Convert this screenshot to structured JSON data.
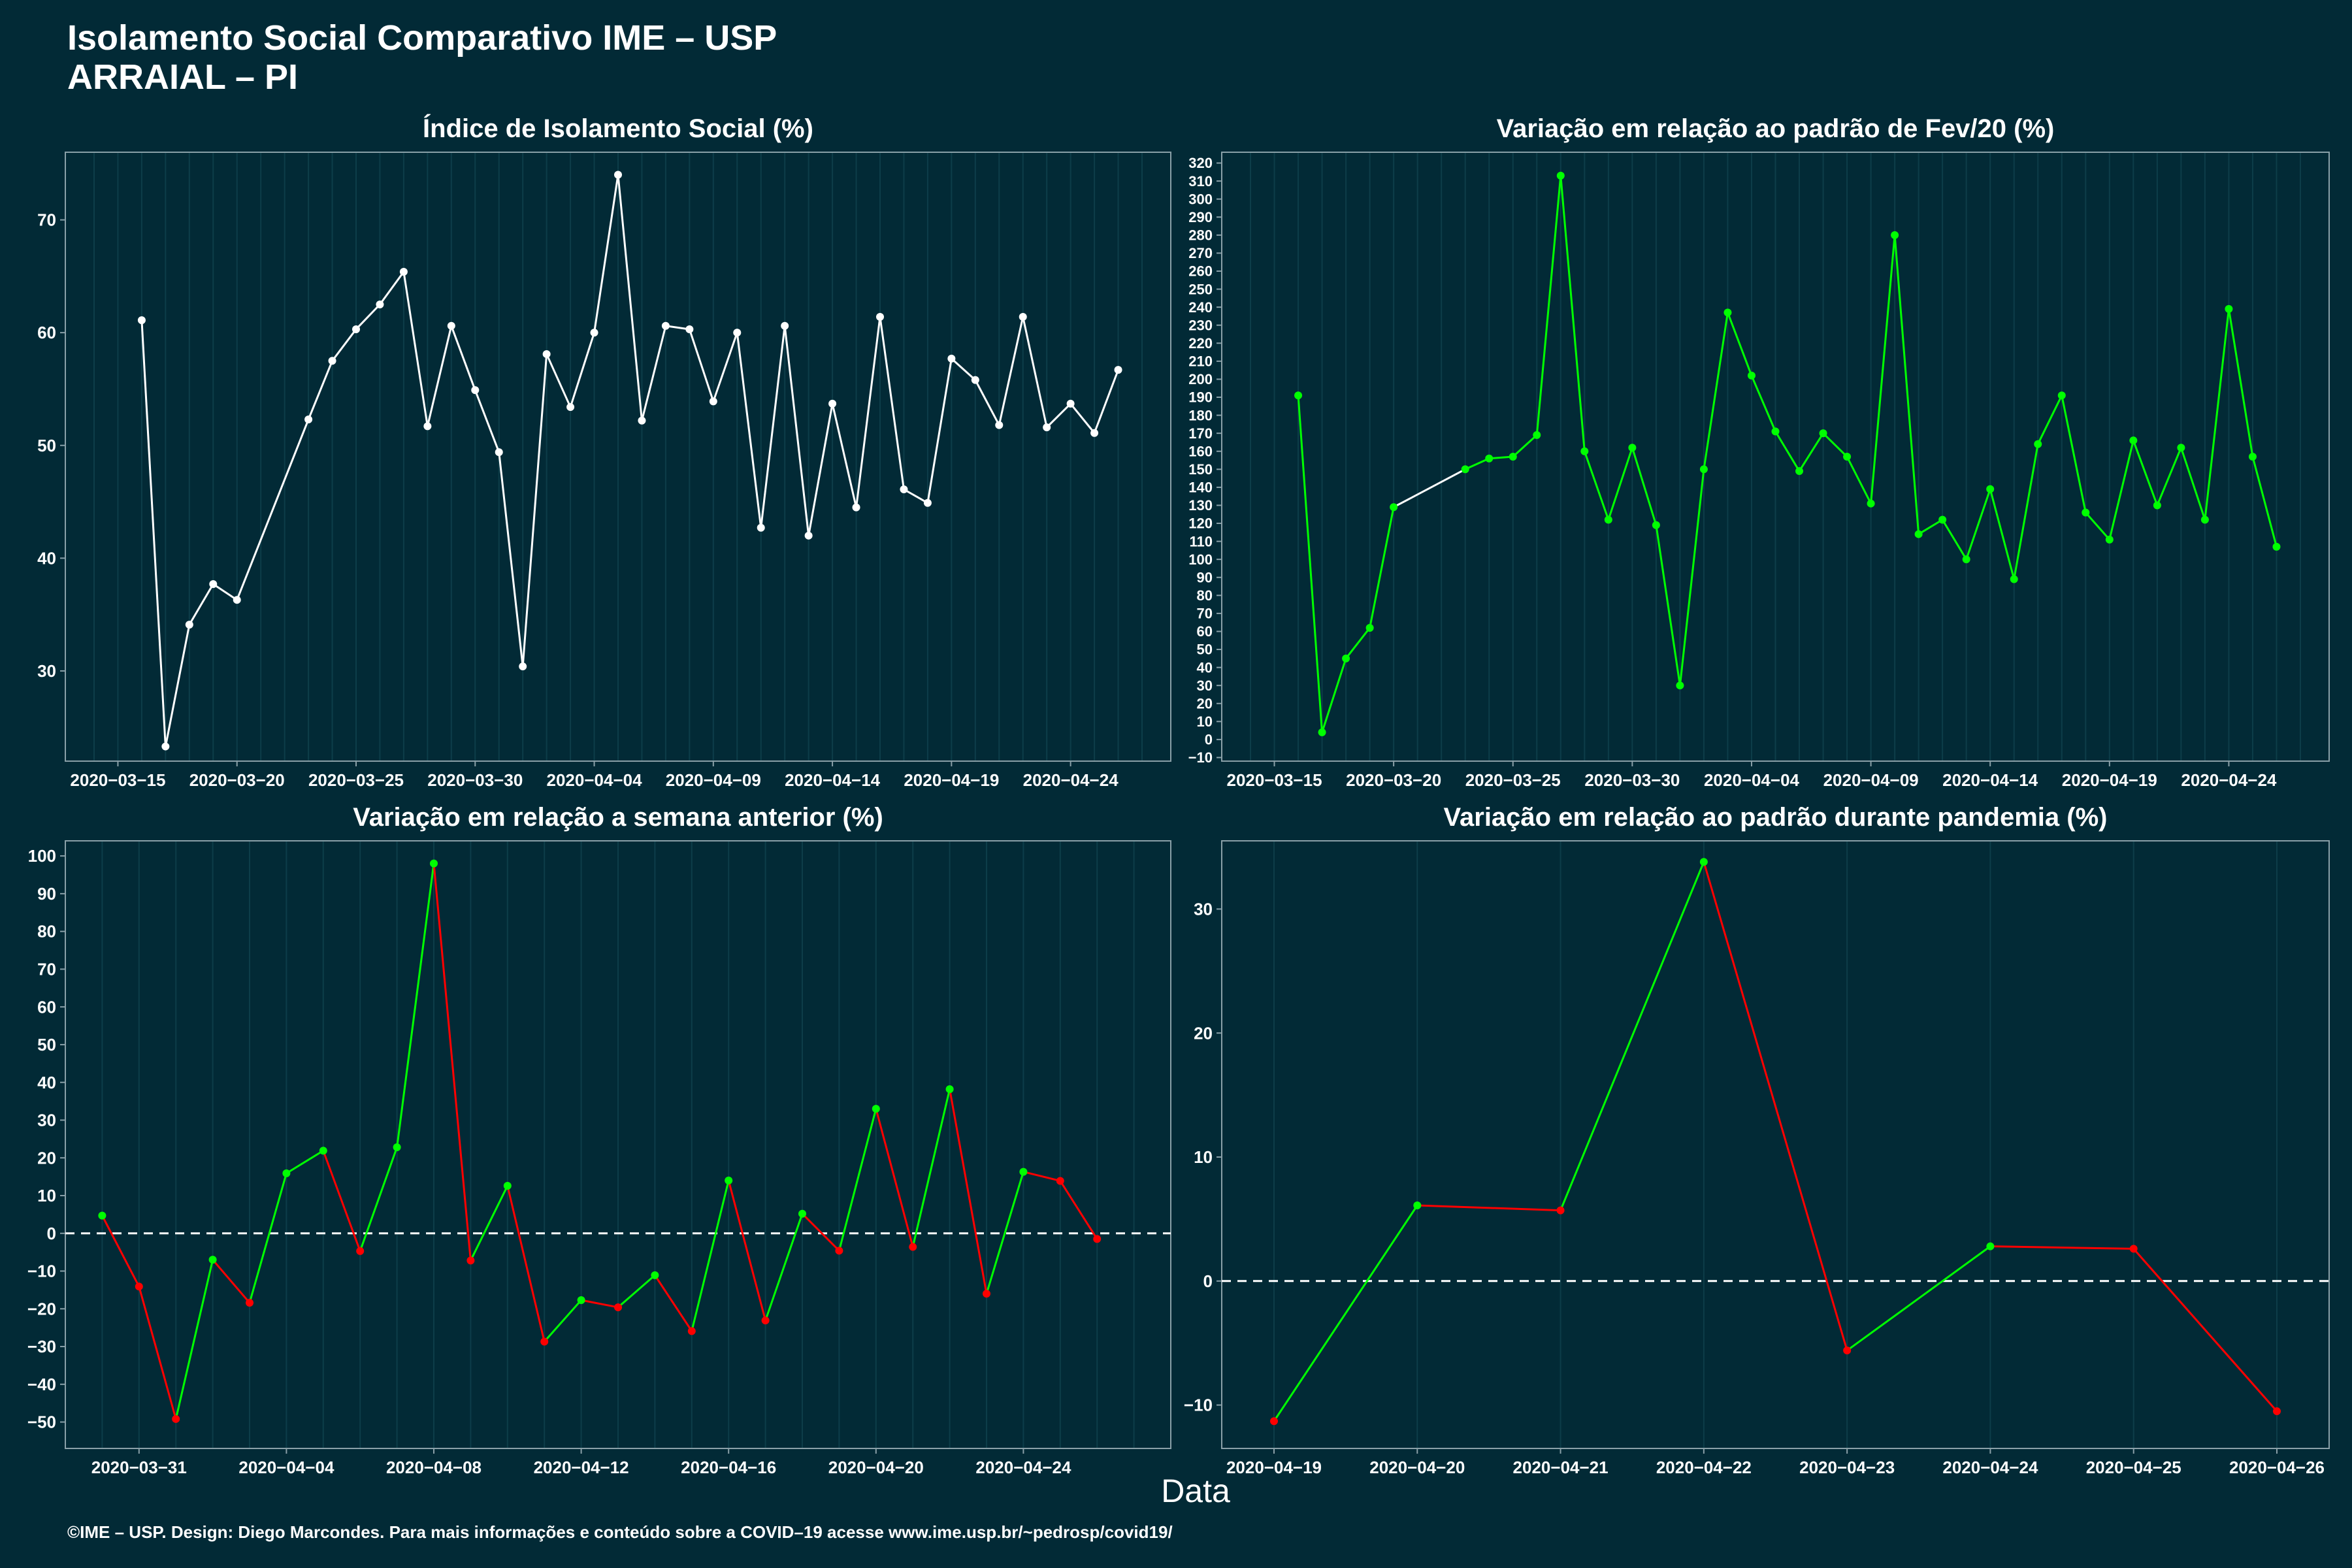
{
  "title_line1": "Isolamento Social Comparativo IME – USP",
  "title_line2": "ARRAIAL – PI",
  "xlabel": "Data",
  "footer": "©IME – USP. Design: Diego Marcondes. Para mais informações e conteúdo sobre a COVID–19 acesse www.ime.usp.br/~pedrosp/covid19/",
  "colors": {
    "background": "#022a36",
    "white": "#ffffff",
    "positive": "#00ff00",
    "negative": "#ff0000",
    "grid": "#0d3d49",
    "axis": "#8aa0a8"
  },
  "chart_data": [
    {
      "type": "line",
      "title": "Índice de Isolamento Social (%)",
      "color": "#ffffff",
      "ylim": [
        22,
        76
      ],
      "yticks": [
        30,
        40,
        50,
        60,
        70
      ],
      "xticks": [
        "2020-03-15",
        "2020-03-20",
        "2020-03-25",
        "2020-03-30",
        "2020-04-04",
        "2020-04-09",
        "2020-04-14",
        "2020-04-19",
        "2020-04-24"
      ],
      "xlim": [
        "2020-03-14",
        "2020-04-27"
      ],
      "points": [
        [
          "2020-03-16",
          61.1
        ],
        [
          "2020-03-17",
          23.3
        ],
        [
          "2020-03-18",
          34.1
        ],
        [
          "2020-03-19",
          37.7
        ],
        [
          "2020-03-20",
          36.3
        ],
        [
          "2020-03-23",
          52.3
        ],
        [
          "2020-03-24",
          57.5
        ],
        [
          "2020-03-25",
          60.3
        ],
        [
          "2020-03-26",
          62.5
        ],
        [
          "2020-03-27",
          65.4
        ],
        [
          "2020-03-28",
          51.7
        ],
        [
          "2020-03-29",
          60.6
        ],
        [
          "2020-03-30",
          54.9
        ],
        [
          "2020-03-31",
          49.4
        ],
        [
          "2020-04-01",
          30.4
        ],
        [
          "2020-04-02",
          58.1
        ],
        [
          "2020-04-03",
          53.4
        ],
        [
          "2020-04-04",
          60.0
        ],
        [
          "2020-04-05",
          74.0
        ],
        [
          "2020-04-06",
          52.2
        ],
        [
          "2020-04-07",
          60.6
        ],
        [
          "2020-04-08",
          60.3
        ],
        [
          "2020-04-09",
          53.9
        ],
        [
          "2020-04-10",
          60.0
        ],
        [
          "2020-04-11",
          42.7
        ],
        [
          "2020-04-12",
          60.6
        ],
        [
          "2020-04-13",
          42.0
        ],
        [
          "2020-04-14",
          53.7
        ],
        [
          "2020-04-15",
          44.5
        ],
        [
          "2020-04-16",
          61.4
        ],
        [
          "2020-04-17",
          46.1
        ],
        [
          "2020-04-18",
          44.9
        ],
        [
          "2020-04-19",
          57.7
        ],
        [
          "2020-04-20",
          55.8
        ],
        [
          "2020-04-21",
          51.8
        ],
        [
          "2020-04-22",
          61.4
        ],
        [
          "2020-04-23",
          51.6
        ],
        [
          "2020-04-24",
          53.7
        ],
        [
          "2020-04-25",
          51.1
        ],
        [
          "2020-04-26",
          56.7
        ]
      ]
    },
    {
      "type": "line",
      "title": "Variação em relação ao padrão de Fev/20 (%)",
      "color": "#00ff00",
      "ylim": [
        -12,
        326
      ],
      "yticks": [
        -10,
        0,
        10,
        20,
        30,
        40,
        50,
        60,
        70,
        80,
        90,
        100,
        110,
        120,
        130,
        140,
        150,
        160,
        170,
        180,
        190,
        200,
        210,
        220,
        230,
        240,
        250,
        260,
        270,
        280,
        290,
        300,
        310,
        320
      ],
      "xticks": [
        "2020-03-15",
        "2020-03-20",
        "2020-03-25",
        "2020-03-30",
        "2020-04-04",
        "2020-04-09",
        "2020-04-14",
        "2020-04-19",
        "2020-04-24"
      ],
      "xlim": [
        "2020-03-14",
        "2020-04-27"
      ],
      "gap_segment_color": "#ffffff",
      "points": [
        [
          "2020-03-16",
          191
        ],
        [
          "2020-03-17",
          4
        ],
        [
          "2020-03-18",
          45
        ],
        [
          "2020-03-19",
          62
        ],
        [
          "2020-03-20",
          129
        ],
        [
          "2020-03-23",
          150
        ],
        [
          "2020-03-24",
          156
        ],
        [
          "2020-03-25",
          157
        ],
        [
          "2020-03-26",
          169
        ],
        [
          "2020-03-27",
          313
        ],
        [
          "2020-03-28",
          160
        ],
        [
          "2020-03-29",
          122
        ],
        [
          "2020-03-30",
          162
        ],
        [
          "2020-03-31",
          119
        ],
        [
          "2020-04-01",
          30
        ],
        [
          "2020-04-02",
          150
        ],
        [
          "2020-04-03",
          237
        ],
        [
          "2020-04-04",
          202
        ],
        [
          "2020-04-05",
          171
        ],
        [
          "2020-04-06",
          149
        ],
        [
          "2020-04-07",
          170
        ],
        [
          "2020-04-08",
          157
        ],
        [
          "2020-04-09",
          131
        ],
        [
          "2020-04-10",
          280
        ],
        [
          "2020-04-11",
          114
        ],
        [
          "2020-04-12",
          122
        ],
        [
          "2020-04-13",
          100
        ],
        [
          "2020-04-14",
          139
        ],
        [
          "2020-04-15",
          89
        ],
        [
          "2020-04-16",
          164
        ],
        [
          "2020-04-17",
          191
        ],
        [
          "2020-04-18",
          126
        ],
        [
          "2020-04-19",
          111
        ],
        [
          "2020-04-20",
          166
        ],
        [
          "2020-04-21",
          130
        ],
        [
          "2020-04-22",
          162
        ],
        [
          "2020-04-23",
          122
        ],
        [
          "2020-04-24",
          239
        ],
        [
          "2020-04-25",
          157
        ],
        [
          "2020-04-26",
          107
        ]
      ]
    },
    {
      "type": "line",
      "title": "Variação em relação a semana anterior (%)",
      "color_rule": "segment green when rising, red when falling",
      "ylim": [
        -57,
        104
      ],
      "yticks": [
        -50,
        -40,
        -30,
        -20,
        -10,
        0,
        10,
        20,
        30,
        40,
        50,
        60,
        70,
        80,
        90,
        100
      ],
      "xticks": [
        "2020-03-31",
        "2020-04-04",
        "2020-04-08",
        "2020-04-12",
        "2020-04-16",
        "2020-04-20",
        "2020-04-24"
      ],
      "xlim": [
        "2020-03-29",
        "2020-04-28"
      ],
      "reference_line": 0,
      "points": [
        [
          "2020-03-30",
          4.7
        ],
        [
          "2020-03-31",
          -14.1
        ],
        [
          "2020-04-01",
          -49.2
        ],
        [
          "2020-04-02",
          -7.0
        ],
        [
          "2020-04-03",
          -18.4
        ],
        [
          "2020-04-04",
          15.9
        ],
        [
          "2020-04-05",
          21.9
        ],
        [
          "2020-04-06",
          -4.7
        ],
        [
          "2020-04-07",
          22.8
        ],
        [
          "2020-04-08",
          98.0
        ],
        [
          "2020-04-09",
          -7.2
        ],
        [
          "2020-04-10",
          12.6
        ],
        [
          "2020-04-11",
          -28.7
        ],
        [
          "2020-04-12",
          -17.7
        ],
        [
          "2020-04-13",
          -19.6
        ],
        [
          "2020-04-14",
          -11.1
        ],
        [
          "2020-04-15",
          -25.9
        ],
        [
          "2020-04-16",
          14.0
        ],
        [
          "2020-04-17",
          -23.1
        ],
        [
          "2020-04-18",
          5.2
        ],
        [
          "2020-04-19",
          -4.6
        ],
        [
          "2020-04-20",
          33.0
        ],
        [
          "2020-04-21",
          -3.6
        ],
        [
          "2020-04-22",
          38.2
        ],
        [
          "2020-04-23",
          -16.0
        ],
        [
          "2020-04-24",
          16.3
        ],
        [
          "2020-04-25",
          13.9
        ],
        [
          "2020-04-26",
          -1.5
        ]
      ]
    },
    {
      "type": "line",
      "title": "Variação em relação ao padrão durante pandemia (%)",
      "color_rule": "segment green when rising, red when falling",
      "ylim": [
        -13.5,
        35.5
      ],
      "yticks": [
        -10,
        0,
        10,
        20,
        30
      ],
      "xticks": [
        "2020-04-19",
        "2020-04-20",
        "2020-04-21",
        "2020-04-22",
        "2020-04-23",
        "2020-04-24",
        "2020-04-25",
        "2020-04-26"
      ],
      "xlim": [
        "2020-04-19",
        "2020-04-26"
      ],
      "reference_line": 0,
      "points": [
        [
          "2020-04-19",
          -11.3
        ],
        [
          "2020-04-20",
          6.1
        ],
        [
          "2020-04-21",
          5.7
        ],
        [
          "2020-04-22",
          33.8
        ],
        [
          "2020-04-23",
          -5.6
        ],
        [
          "2020-04-24",
          2.8
        ],
        [
          "2020-04-25",
          2.6
        ],
        [
          "2020-04-26",
          -10.5
        ]
      ]
    }
  ]
}
